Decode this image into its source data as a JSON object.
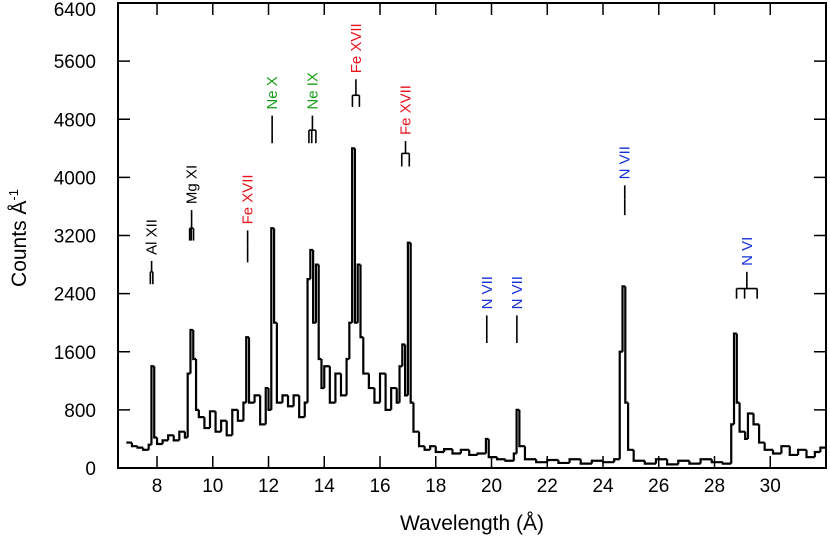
{
  "chart_data": {
    "type": "step",
    "xlabel": "Wavelength (Å)",
    "ylabel": "Counts Å",
    "ylabel_superscript": "-1",
    "xlim": [
      6.6,
      32.0
    ],
    "ylim": [
      0,
      6400
    ],
    "xticks": [
      8,
      10,
      12,
      14,
      16,
      18,
      20,
      22,
      24,
      26,
      28,
      30
    ],
    "yticks": [
      0,
      800,
      1600,
      2400,
      3200,
      4000,
      4800,
      5600,
      6400
    ],
    "color": "#000000",
    "x": [
      6.9,
      7.1,
      7.3,
      7.5,
      7.7,
      7.8,
      7.9,
      8.0,
      8.2,
      8.4,
      8.6,
      8.8,
      9.0,
      9.1,
      9.2,
      9.3,
      9.4,
      9.5,
      9.7,
      9.9,
      10.1,
      10.3,
      10.5,
      10.7,
      10.9,
      11.1,
      11.2,
      11.3,
      11.5,
      11.7,
      11.9,
      12.0,
      12.1,
      12.2,
      12.3,
      12.5,
      12.7,
      12.9,
      13.1,
      13.3,
      13.4,
      13.5,
      13.6,
      13.7,
      13.8,
      13.9,
      14.0,
      14.2,
      14.4,
      14.6,
      14.8,
      14.9,
      15.0,
      15.1,
      15.2,
      15.3,
      15.4,
      15.6,
      15.8,
      16.0,
      16.2,
      16.4,
      16.6,
      16.7,
      16.8,
      16.9,
      17.0,
      17.1,
      17.2,
      17.4,
      17.6,
      17.8,
      18.0,
      18.3,
      18.6,
      18.9,
      19.2,
      19.5,
      19.8,
      19.9,
      20.2,
      20.5,
      20.8,
      20.9,
      21.0,
      21.2,
      21.6,
      22.0,
      22.4,
      22.8,
      23.2,
      23.6,
      24.0,
      24.4,
      24.6,
      24.7,
      24.8,
      24.9,
      25.1,
      25.5,
      25.9,
      26.3,
      26.7,
      27.1,
      27.5,
      27.9,
      28.3,
      28.6,
      28.7,
      28.8,
      28.9,
      29.1,
      29.2,
      29.4,
      29.6,
      29.8,
      30.1,
      30.4,
      30.7,
      31.0,
      31.3,
      31.6,
      31.8
    ],
    "values": [
      350,
      300,
      280,
      250,
      320,
      1400,
      420,
      330,
      380,
      450,
      380,
      500,
      420,
      1300,
      1900,
      1500,
      800,
      700,
      550,
      780,
      500,
      650,
      450,
      800,
      650,
      900,
      1800,
      900,
      1000,
      600,
      1100,
      800,
      3300,
      2000,
      900,
      1000,
      850,
      1000,
      700,
      900,
      2600,
      3000,
      2000,
      2800,
      1500,
      1100,
      1400,
      900,
      1300,
      1000,
      1500,
      2000,
      4400,
      2000,
      2800,
      1800,
      1300,
      1100,
      900,
      1300,
      800,
      1100,
      900,
      1400,
      1700,
      1000,
      3100,
      900,
      500,
      300,
      250,
      300,
      220,
      260,
      200,
      250,
      180,
      200,
      400,
      150,
      120,
      100,
      200,
      800,
      300,
      120,
      80,
      110,
      70,
      120,
      60,
      100,
      80,
      120,
      1600,
      2500,
      900,
      250,
      100,
      60,
      120,
      50,
      100,
      60,
      120,
      80,
      60,
      600,
      1850,
      900,
      500,
      400,
      750,
      600,
      350,
      250,
      200,
      300,
      180,
      250,
      150,
      220,
      280
    ],
    "annotations": [
      {
        "text": "Al XII",
        "color": "#000000",
        "x": [
          7.76,
          7.85
        ],
        "y0": 2530,
        "y1": 2700,
        "y2": 2850
      },
      {
        "text": "Mg XI",
        "color": "#000000",
        "x": [
          9.17,
          9.23,
          9.31
        ],
        "y0": 3130,
        "y1": 3300,
        "y2": 3550
      },
      {
        "text": "Fe XVII",
        "color": "#e8131b",
        "x": [
          11.25
        ],
        "y0": 2830,
        "y1": 3050,
        "y2": 3270
      },
      {
        "text": "Ne X",
        "color": "#1a9c1a",
        "x": [
          12.13
        ],
        "y0": 4470,
        "y1": 4650,
        "y2": 4850
      },
      {
        "text": "Ne IX",
        "color": "#1a9c1a",
        "x": [
          13.45,
          13.55,
          13.7
        ],
        "y0": 4470,
        "y1": 4650,
        "y2": 4850
      },
      {
        "text": "Fe XVII",
        "color": "#e8131b",
        "x": [
          15.01,
          15.26
        ],
        "y0": 4970,
        "y1": 5130,
        "y2": 5350
      },
      {
        "text": "Fe XVII",
        "color": "#e8131b",
        "x": [
          16.78,
          17.05
        ],
        "y0": 4150,
        "y1": 4330,
        "y2": 4500
      },
      {
        "text": "N VII",
        "color": "#1530d8",
        "x": [
          19.83
        ],
        "y0": 1720,
        "y1": 1900,
        "y2": 2100
      },
      {
        "text": "N VII",
        "color": "#1530d8",
        "x": [
          20.91
        ],
        "y0": 1720,
        "y1": 1900,
        "y2": 2100
      },
      {
        "text": "N VII",
        "color": "#1530d8",
        "x": [
          24.78
        ],
        "y0": 3480,
        "y1": 3700,
        "y2": 3890
      },
      {
        "text": "N VI",
        "color": "#1530d8",
        "x": [
          28.79,
          29.08,
          29.53
        ],
        "y0": 2330,
        "y1": 2470,
        "y2": 2700
      }
    ]
  }
}
